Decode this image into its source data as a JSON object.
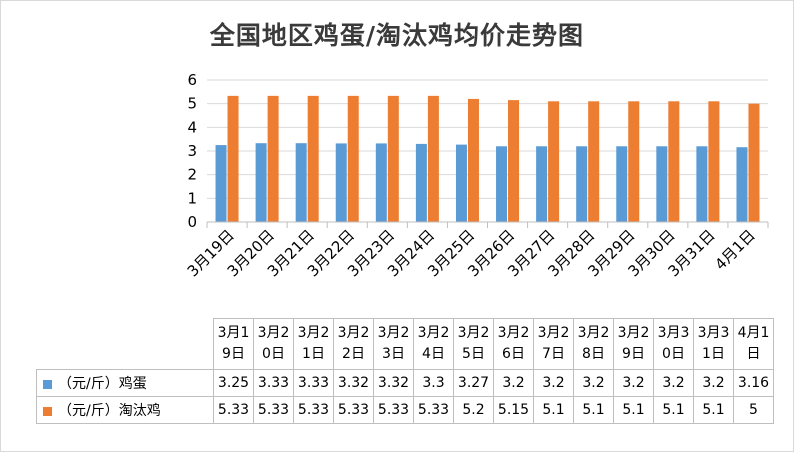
{
  "title": "全国地区鸡蛋/淘汰鸡均价走势图",
  "chart_data": {
    "type": "bar",
    "title": "全国地区鸡蛋/淘汰鸡均价走势图",
    "categories": [
      "3月19日",
      "3月20日",
      "3月21日",
      "3月22日",
      "3月23日",
      "3月24日",
      "3月25日",
      "3月26日",
      "3月27日",
      "3月28日",
      "3月29日",
      "3月30日",
      "3月31日",
      "4月1日"
    ],
    "table_headers": [
      [
        "3月1",
        "9日"
      ],
      [
        "3月2",
        "0日"
      ],
      [
        "3月2",
        "1日"
      ],
      [
        "3月2",
        "2日"
      ],
      [
        "3月2",
        "3日"
      ],
      [
        "3月2",
        "4日"
      ],
      [
        "3月2",
        "5日"
      ],
      [
        "3月2",
        "6日"
      ],
      [
        "3月2",
        "7日"
      ],
      [
        "3月2",
        "8日"
      ],
      [
        "3月2",
        "9日"
      ],
      [
        "3月3",
        "0日"
      ],
      [
        "3月3",
        "1日"
      ],
      [
        "4月1",
        "日"
      ]
    ],
    "series": [
      {
        "name": "（元/斤）鸡蛋",
        "color": "#5b9bd5",
        "values": [
          3.25,
          3.33,
          3.33,
          3.32,
          3.32,
          3.3,
          3.27,
          3.2,
          3.2,
          3.2,
          3.2,
          3.2,
          3.2,
          3.16
        ]
      },
      {
        "name": "（元/斤）淘汰鸡",
        "color": "#ed7d31",
        "values": [
          5.33,
          5.33,
          5.33,
          5.33,
          5.33,
          5.33,
          5.2,
          5.15,
          5.1,
          5.1,
          5.1,
          5.1,
          5.1,
          5
        ]
      }
    ],
    "yticks": [
      0,
      1,
      2,
      3,
      4,
      5,
      6
    ],
    "ylim": [
      0,
      6
    ],
    "grid": true,
    "legend": "data-table"
  }
}
